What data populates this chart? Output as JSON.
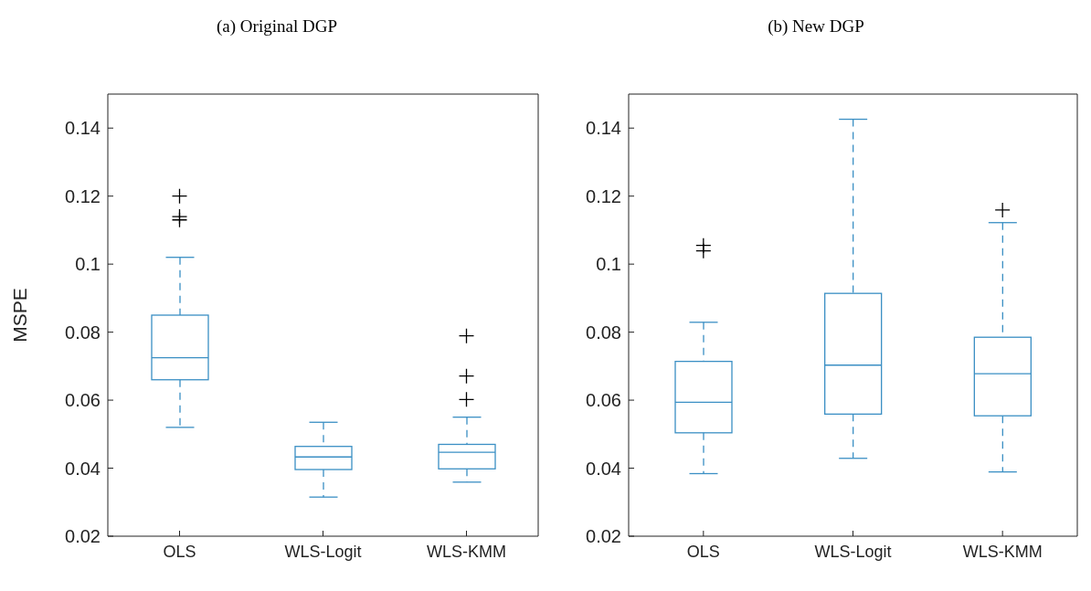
{
  "chart_data": [
    {
      "type": "box",
      "title": "(a) Original DGP",
      "ylabel": "MSPE",
      "categories": [
        "OLS",
        "WLS-Logit",
        "WLS-KMM"
      ],
      "ylim": [
        0.02,
        0.15
      ],
      "yticks": [
        0.02,
        0.04,
        0.06,
        0.08,
        0.1,
        0.12,
        0.14
      ],
      "grid": false,
      "legend": false,
      "series": [
        {
          "color": "#3a8fc4",
          "boxes": [
            {
              "low": 0.052,
              "q1": 0.066,
              "median": 0.0725,
              "q3": 0.085,
              "high": 0.102,
              "outliers": [
                0.12,
                0.114,
                0.113
              ]
            },
            {
              "low": 0.0315,
              "q1": 0.0396,
              "median": 0.0433,
              "q3": 0.0464,
              "high": 0.0535
            },
            {
              "low": 0.0359,
              "q1": 0.0398,
              "median": 0.0447,
              "q3": 0.047,
              "high": 0.055,
              "outliers": [
                0.0789,
                0.0671,
                0.0602
              ]
            }
          ]
        }
      ]
    },
    {
      "type": "box",
      "title": "(b) New DGP",
      "categories": [
        "OLS",
        "WLS-Logit",
        "WLS-KMM"
      ],
      "ylim": [
        0.02,
        0.15
      ],
      "yticks": [
        0.02,
        0.04,
        0.06,
        0.08,
        0.1,
        0.12,
        0.14
      ],
      "grid": false,
      "legend": false,
      "series": [
        {
          "color": "#3a8fc4",
          "boxes": [
            {
              "low": 0.0384,
              "q1": 0.0504,
              "median": 0.0594,
              "q3": 0.0714,
              "high": 0.0829,
              "outliers": [
                0.1055,
                0.1039
              ]
            },
            {
              "low": 0.0429,
              "q1": 0.0559,
              "median": 0.0703,
              "q3": 0.0914,
              "high": 0.1426
            },
            {
              "low": 0.0389,
              "q1": 0.0554,
              "median": 0.0678,
              "q3": 0.0785,
              "high": 0.1122,
              "outliers": [
                0.1159
              ]
            }
          ]
        }
      ]
    }
  ]
}
